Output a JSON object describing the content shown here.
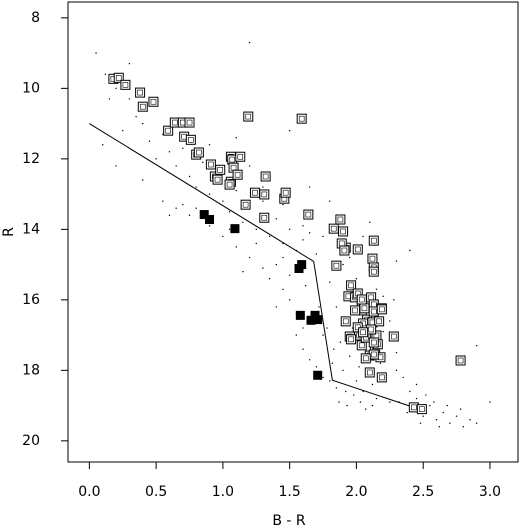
{
  "chart_data": {
    "type": "scatter",
    "x_label": "B - R",
    "y_label": "R",
    "xlim": [
      -0.16,
      3.21
    ],
    "ylim": [
      7.55,
      20.6
    ],
    "y_inverted": true,
    "xticks": [
      {
        "value": 0,
        "label": "0.0"
      },
      0.5,
      {
        "value": 1,
        "label": "1.0"
      },
      1.5,
      {
        "value": 2,
        "label": "2.0"
      },
      2.5,
      {
        "value": 3,
        "label": "3.0"
      }
    ],
    "yticks": [
      8,
      10,
      12,
      14,
      16,
      18,
      20
    ],
    "series": [
      {
        "marker": "dot",
        "color": "#000000",
        "x": [
          0.05,
          0.12,
          0.2,
          0.15,
          0.3,
          0.35,
          0.25,
          0.4,
          0.45,
          0.55,
          0.6,
          0.5,
          0.65,
          0.7,
          0.75,
          0.8,
          0.85,
          0.9,
          0.95,
          1.0,
          1.05,
          1.1,
          1.15,
          1.2,
          1.25,
          1.3,
          1.35,
          1.4,
          1.45,
          1.5,
          1.55,
          1.6,
          1.65,
          1.7,
          1.75,
          1.0,
          0.9,
          1.2,
          1.3,
          1.45,
          1.6,
          1.1,
          1.2,
          0.3,
          0.55,
          0.65,
          0.7,
          0.75,
          0.8,
          0.6,
          0.9,
          1.0,
          1.05,
          1.1,
          1.2,
          1.25,
          1.3,
          1.35,
          1.4,
          1.45,
          1.5,
          1.5,
          1.55,
          1.6,
          1.55,
          1.6,
          1.65,
          1.7,
          1.75,
          1.75,
          1.72,
          1.62,
          1.4,
          1.45,
          1.15,
          1.8,
          1.82,
          1.85,
          1.88,
          1.9,
          1.92,
          1.95,
          1.97,
          2.0,
          2.02,
          2.05,
          2.08,
          2.1,
          2.12,
          2.15,
          2.18,
          2.2,
          2.22,
          2.25,
          2.28,
          2.3,
          1.8,
          1.85,
          1.9,
          1.95,
          2.0,
          2.05,
          2.1,
          2.15,
          2.2,
          2.25,
          1.78,
          1.83,
          1.87,
          1.93,
          1.98,
          2.03,
          2.07,
          2.12,
          2.35,
          2.4,
          2.32,
          2.38,
          2.45,
          2.5,
          2.55,
          2.6,
          2.65,
          2.7,
          2.75,
          2.8,
          2.85,
          2.9,
          2.58,
          2.68,
          2.78,
          2.48,
          2.62,
          2.3,
          2.45,
          2.52,
          2.9,
          3.0,
          2.4,
          2.3,
          1.65,
          1.8,
          1.5,
          0.1,
          0.2,
          0.4
        ],
        "y": [
          9.0,
          9.6,
          10.0,
          10.3,
          10.3,
          10.8,
          11.2,
          11.0,
          11.5,
          11.3,
          11.8,
          12.0,
          12.2,
          11.7,
          12.5,
          12.8,
          12.1,
          13.0,
          12.7,
          13.2,
          13.5,
          12.9,
          13.8,
          13.4,
          14.0,
          13.2,
          14.2,
          13.7,
          14.4,
          14.0,
          14.6,
          14.3,
          14.1,
          14.7,
          14.2,
          12.4,
          11.6,
          12.2,
          12.8,
          13.3,
          13.9,
          11.4,
          8.7,
          9.3,
          13.2,
          13.4,
          13.3,
          13.6,
          13.4,
          13.6,
          13.9,
          14.2,
          14.0,
          14.5,
          14.8,
          14.4,
          15.1,
          15.4,
          15.0,
          15.7,
          15.3,
          16.0,
          16.4,
          16.8,
          17.0,
          17.4,
          17.7,
          17.9,
          18.2,
          17.0,
          16.2,
          15.6,
          16.2,
          14.8,
          15.2,
          18.3,
          17.8,
          18.5,
          17.2,
          18.0,
          18.6,
          17.6,
          16.8,
          18.3,
          17.9,
          18.6,
          16.5,
          17.3,
          18.4,
          18.8,
          17.8,
          16.9,
          18.3,
          18.9,
          16.0,
          17.5,
          15.5,
          16.2,
          15.0,
          14.8,
          15.4,
          14.2,
          13.8,
          15.7,
          15.9,
          16.6,
          16.8,
          17.4,
          18.9,
          19.0,
          18.7,
          18.9,
          19.1,
          19.0,
          18.2,
          18.6,
          18.9,
          19.2,
          18.8,
          19.3,
          19.0,
          19.4,
          19.2,
          19.5,
          19.3,
          19.6,
          19.4,
          19.5,
          18.9,
          19.0,
          19.1,
          19.5,
          19.6,
          18.0,
          18.4,
          18.7,
          17.3,
          18.9,
          14.6,
          14.9,
          12.8,
          13.2,
          11.2,
          11.6,
          12.2,
          12.6
        ]
      },
      {
        "marker": "line",
        "color": "#000000",
        "x": [
          0,
          1.68,
          1.82,
          2.43
        ],
        "y": [
          11.0,
          14.91,
          18.28,
          19.05
        ]
      },
      {
        "marker": "open-square",
        "color": "#000000",
        "x": [
          0.18,
          0.22,
          0.27,
          0.38,
          0.4,
          0.48,
          0.59,
          0.64,
          0.7,
          0.75,
          0.71,
          0.76,
          0.8,
          0.82,
          0.91,
          0.94,
          0.96,
          0.98,
          1.06,
          1.07,
          1.08,
          1.06,
          1.05,
          1.11,
          1.13,
          1.19,
          1.17,
          1.24,
          1.31,
          1.31,
          1.32,
          1.46,
          1.47,
          1.59,
          1.64,
          1.83,
          1.88,
          1.9,
          1.92,
          1.89,
          1.91,
          1.85,
          2.01,
          2.13,
          2.12,
          2.13,
          2.13,
          1.96,
          1.94,
          1.99,
          2.01,
          2.04,
          2.04,
          2.06,
          1.99,
          2.04,
          2.11,
          2.13,
          2.08,
          2.12,
          2.19,
          2.13,
          2.17,
          2.19,
          2.15,
          1.92,
          1.95,
          2.05,
          2.04,
          2.1,
          2.14,
          2.02,
          2.07,
          2.16,
          2.18,
          2.19,
          2.1,
          2.13,
          2.28,
          2.13,
          2.43,
          2.49,
          2.78,
          1.96,
          2.01,
          2.11,
          2.07,
          2.05
        ],
        "y": [
          9.73,
          9.7,
          9.9,
          10.12,
          10.52,
          10.38,
          11.2,
          10.97,
          10.97,
          10.97,
          11.37,
          11.46,
          11.88,
          11.82,
          12.16,
          12.5,
          12.59,
          12.31,
          11.94,
          12.02,
          12.25,
          12.65,
          12.73,
          12.45,
          11.94,
          10.8,
          13.3,
          12.96,
          13.01,
          13.67,
          12.5,
          13.13,
          12.96,
          10.86,
          13.58,
          13.98,
          13.72,
          14.06,
          14.52,
          14.4,
          14.6,
          15.03,
          14.57,
          14.32,
          14.83,
          15.08,
          15.2,
          15.59,
          15.9,
          15.93,
          15.82,
          16.16,
          16.3,
          16.24,
          16.3,
          15.99,
          15.93,
          16.13,
          16.56,
          16.64,
          16.24,
          16.33,
          16.61,
          16.27,
          17.01,
          16.61,
          17.04,
          16.67,
          17.29,
          17.58,
          17.38,
          17.01,
          17.07,
          17.26,
          17.63,
          18.2,
          18.06,
          17.55,
          17.04,
          17.21,
          19.05,
          19.1,
          17.72,
          17.12,
          16.78,
          16.84,
          17.66,
          16.92
        ]
      },
      {
        "marker": "filled-square",
        "color": "#000000",
        "x": [
          0.86,
          0.9,
          1.09,
          1.57,
          1.59,
          1.58,
          1.66,
          1.71,
          1.69,
          1.71
        ],
        "y": [
          13.58,
          13.72,
          13.98,
          15.11,
          15.0,
          16.44,
          16.58,
          16.56,
          16.44,
          18.14
        ]
      }
    ]
  }
}
